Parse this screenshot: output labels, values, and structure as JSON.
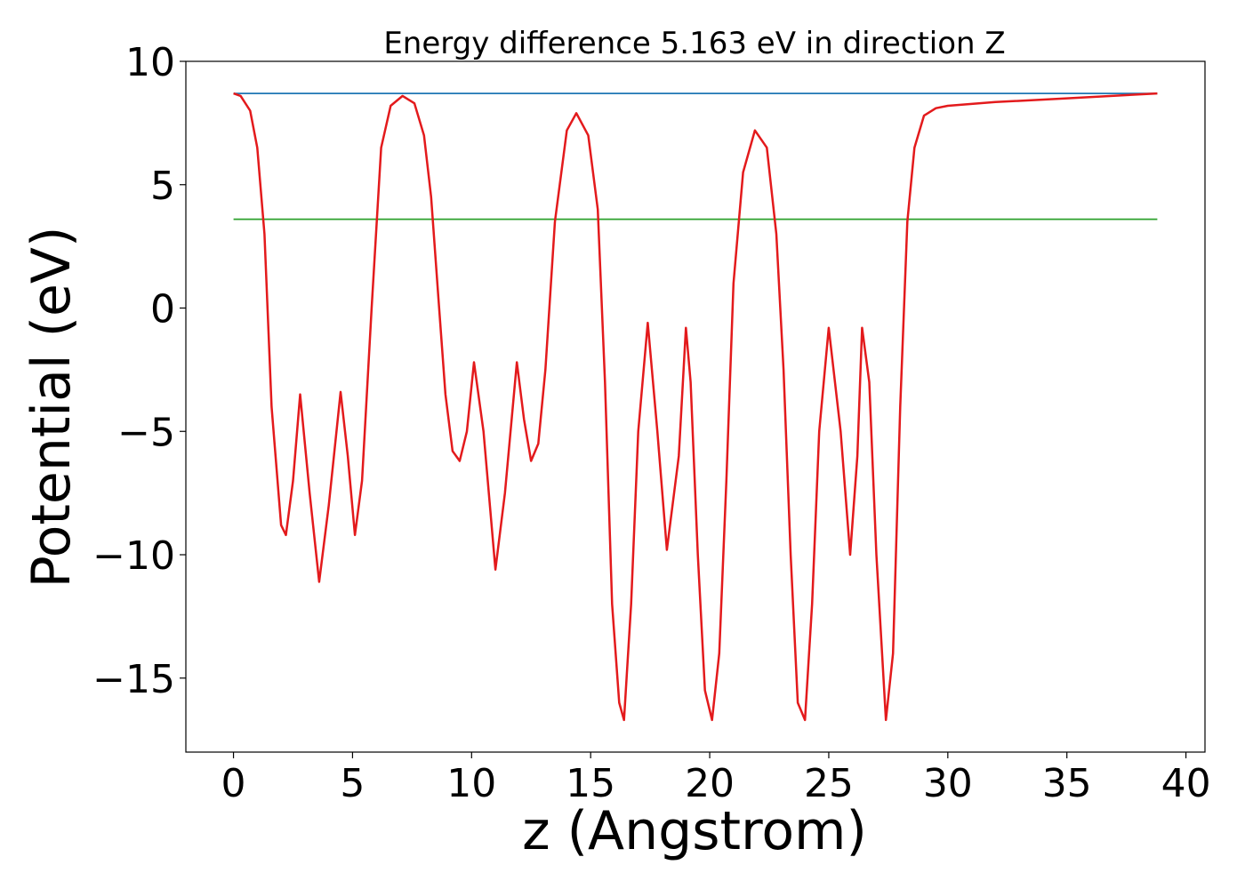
{
  "chart_data": {
    "type": "line",
    "title": "Energy difference 5.163 eV in direction Z",
    "xlabel": "z (Angstrom)",
    "ylabel": "Potential (eV)",
    "xlim": [
      -2,
      40.8
    ],
    "ylim": [
      -18,
      10
    ],
    "xticks": [
      0,
      5,
      10,
      15,
      20,
      25,
      30,
      35,
      40
    ],
    "yticks": [
      10,
      5,
      0,
      -5,
      -10,
      -15
    ],
    "ytick_labels": [
      "10",
      "5",
      "0",
      "−5",
      "−10",
      "−15"
    ],
    "grid": false,
    "series": [
      {
        "color": "#1f77b4",
        "x": [
          0,
          38.8
        ],
        "y": [
          8.7,
          8.7
        ]
      },
      {
        "color": "#2ca02c",
        "x": [
          0,
          38.8
        ],
        "y": [
          3.6,
          3.6
        ]
      },
      {
        "color": "#e31a1c",
        "x": [
          0,
          0.3,
          0.7,
          1.0,
          1.3,
          1.6,
          2.0,
          2.2,
          2.5,
          2.8,
          3.2,
          3.6,
          4.0,
          4.5,
          4.8,
          5.1,
          5.4,
          5.8,
          6.2,
          6.6,
          7.1,
          7.6,
          8.0,
          8.3,
          8.6,
          8.9,
          9.2,
          9.5,
          9.8,
          10.1,
          10.5,
          11.0,
          11.4,
          11.9,
          12.2,
          12.5,
          12.8,
          13.1,
          13.5,
          14.0,
          14.4,
          14.9,
          15.3,
          15.6,
          15.9,
          16.2,
          16.4,
          16.7,
          17.0,
          17.4,
          17.8,
          18.2,
          18.7,
          19.0,
          19.2,
          19.5,
          19.8,
          20.1,
          20.4,
          20.7,
          21.0,
          21.4,
          21.9,
          22.4,
          22.8,
          23.1,
          23.4,
          23.7,
          24.0,
          24.3,
          24.6,
          25.0,
          25.5,
          25.9,
          26.2,
          26.4,
          26.7,
          27.0,
          27.4,
          27.7,
          28.0,
          28.3,
          28.6,
          29.0,
          29.5,
          30.0,
          32.0,
          35.0,
          38.8
        ],
        "y": [
          8.7,
          8.6,
          8.0,
          6.5,
          3.0,
          -4.0,
          -8.8,
          -9.2,
          -7.0,
          -3.5,
          -7.5,
          -11.1,
          -8.0,
          -3.4,
          -6.0,
          -9.2,
          -7.0,
          0.0,
          6.5,
          8.2,
          8.6,
          8.3,
          7.0,
          4.5,
          0.5,
          -3.5,
          -5.8,
          -6.2,
          -5.0,
          -2.2,
          -5.0,
          -10.6,
          -7.5,
          -2.2,
          -4.5,
          -6.2,
          -5.5,
          -2.5,
          3.5,
          7.2,
          7.9,
          7.0,
          4.0,
          -3.0,
          -12.0,
          -16.0,
          -16.7,
          -12.0,
          -5.0,
          -0.6,
          -5.0,
          -9.8,
          -6.0,
          -0.8,
          -3.0,
          -10.0,
          -15.5,
          -16.7,
          -14.0,
          -7.0,
          1.0,
          5.5,
          7.2,
          6.5,
          3.0,
          -2.5,
          -10.0,
          -16.0,
          -16.7,
          -12.0,
          -5.0,
          -0.8,
          -5.0,
          -10.0,
          -6.0,
          -0.8,
          -3.0,
          -10.0,
          -16.7,
          -14.0,
          -4.0,
          3.5,
          6.5,
          7.8,
          8.1,
          8.2,
          8.35,
          8.5,
          8.7
        ]
      }
    ]
  }
}
